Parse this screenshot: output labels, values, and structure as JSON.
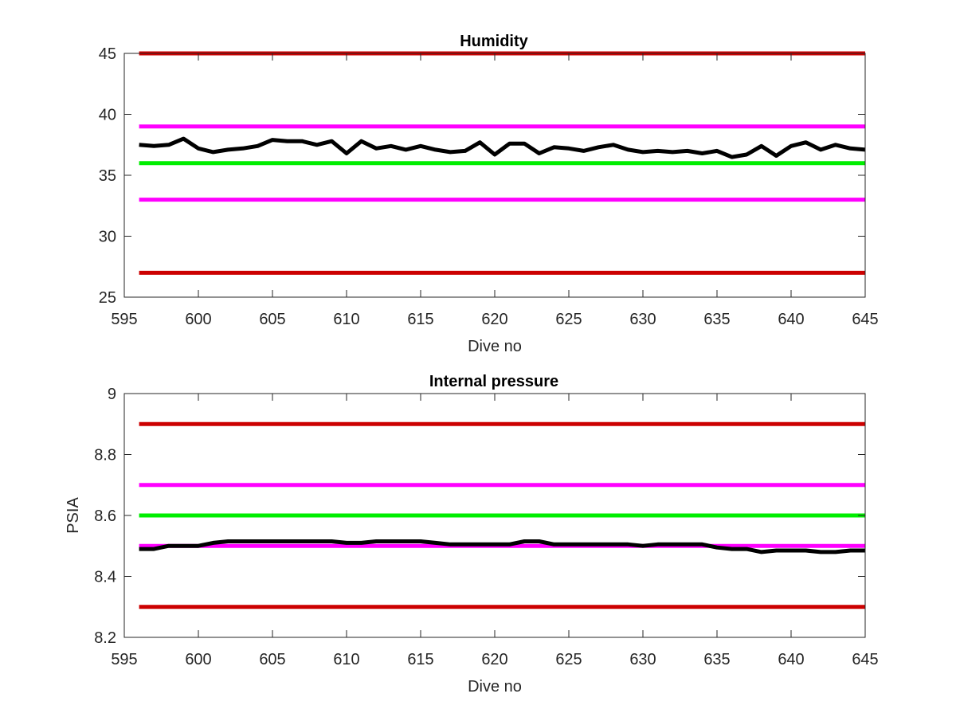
{
  "colors": {
    "red": "#cc0000",
    "magenta": "#ff00ff",
    "green": "#00ee00",
    "data": "#000000",
    "axis": "#262626"
  },
  "chart_data": [
    {
      "type": "line",
      "title": "Humidity",
      "xlabel": "Dive no",
      "ylabel": "",
      "xlim": [
        595,
        645
      ],
      "ylim": [
        25,
        45
      ],
      "xticks": [
        "595",
        "600",
        "605",
        "610",
        "615",
        "620",
        "625",
        "630",
        "635",
        "640",
        "645"
      ],
      "yticks": [
        "25",
        "30",
        "35",
        "40",
        "45"
      ],
      "grid": false,
      "box": true,
      "thresholds": [
        {
          "value": 45,
          "color": "red"
        },
        {
          "value": 39,
          "color": "magenta"
        },
        {
          "value": 36,
          "color": "green"
        },
        {
          "value": 33,
          "color": "magenta"
        },
        {
          "value": 27,
          "color": "red"
        }
      ],
      "series": [
        {
          "x": [
            596,
            597,
            598,
            599,
            600,
            601,
            602,
            603,
            604,
            605,
            606,
            607,
            608,
            609,
            610,
            611,
            612,
            613,
            614,
            615,
            616,
            617,
            618,
            619,
            620,
            621,
            622,
            623,
            624,
            625,
            626,
            627,
            628,
            629,
            630,
            631,
            632,
            633,
            634,
            635,
            636,
            637,
            638,
            639,
            640,
            641,
            642,
            643,
            644,
            645
          ],
          "y": [
            37.5,
            37.4,
            37.5,
            38.0,
            37.2,
            36.9,
            37.1,
            37.2,
            37.4,
            37.9,
            37.8,
            37.8,
            37.5,
            37.8,
            36.8,
            37.8,
            37.2,
            37.4,
            37.1,
            37.4,
            37.1,
            36.9,
            37.0,
            37.7,
            36.7,
            37.6,
            37.6,
            36.8,
            37.3,
            37.2,
            37.0,
            37.3,
            37.5,
            37.1,
            36.9,
            37.0,
            36.9,
            37.0,
            36.8,
            37.0,
            36.5,
            36.7,
            37.4,
            36.6,
            37.4,
            37.7,
            37.1,
            37.5,
            37.2,
            37.1
          ]
        }
      ]
    },
    {
      "type": "line",
      "title": "Internal pressure",
      "xlabel": "Dive no",
      "ylabel": "PSIA",
      "xlim": [
        595,
        645
      ],
      "ylim": [
        8.2,
        9
      ],
      "xticks": [
        "595",
        "600",
        "605",
        "610",
        "615",
        "620",
        "625",
        "630",
        "635",
        "640",
        "645"
      ],
      "yticks": [
        "8.2",
        "8.4",
        "8.6",
        "8.8",
        "9"
      ],
      "grid": false,
      "box": true,
      "thresholds": [
        {
          "value": 8.9,
          "color": "red"
        },
        {
          "value": 8.7,
          "color": "magenta"
        },
        {
          "value": 8.6,
          "color": "green"
        },
        {
          "value": 8.5,
          "color": "magenta"
        },
        {
          "value": 8.3,
          "color": "red"
        }
      ],
      "series": [
        {
          "x": [
            596,
            597,
            598,
            599,
            600,
            601,
            602,
            603,
            604,
            605,
            606,
            607,
            608,
            609,
            610,
            611,
            612,
            613,
            614,
            615,
            616,
            617,
            618,
            619,
            620,
            621,
            622,
            623,
            624,
            625,
            626,
            627,
            628,
            629,
            630,
            631,
            632,
            633,
            634,
            635,
            636,
            637,
            638,
            639,
            640,
            641,
            642,
            643,
            644,
            645
          ],
          "y": [
            8.49,
            8.49,
            8.5,
            8.5,
            8.5,
            8.51,
            8.515,
            8.515,
            8.515,
            8.515,
            8.515,
            8.515,
            8.515,
            8.515,
            8.51,
            8.51,
            8.515,
            8.515,
            8.515,
            8.515,
            8.51,
            8.505,
            8.505,
            8.505,
            8.505,
            8.505,
            8.515,
            8.515,
            8.505,
            8.505,
            8.505,
            8.505,
            8.505,
            8.505,
            8.5,
            8.505,
            8.505,
            8.505,
            8.505,
            8.495,
            8.49,
            8.49,
            8.48,
            8.485,
            8.485,
            8.485,
            8.48,
            8.48,
            8.485,
            8.485
          ]
        }
      ]
    }
  ]
}
